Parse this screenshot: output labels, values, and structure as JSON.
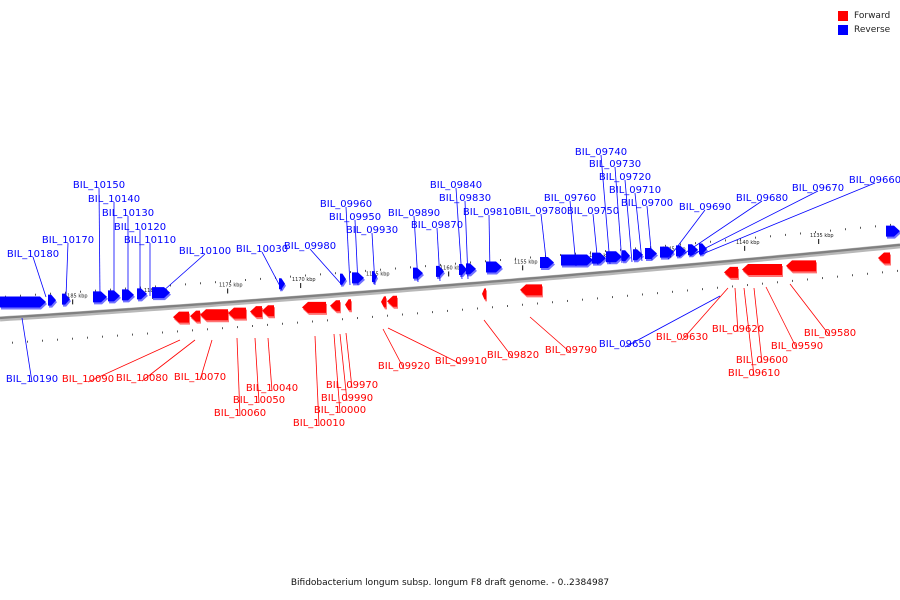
{
  "legend": {
    "forward_label": "Forward",
    "reverse_label": "Reverse",
    "forward_color": "#ff0000",
    "reverse_color": "#0000ff"
  },
  "caption": "Bifidobacterium longum subsp. longum F8 draft genome. - 0..2384987",
  "colors": {
    "backbone": "#808080",
    "forward": "#ff0000",
    "reverse": "#0000ff"
  },
  "ticks": [
    "1185 kbp",
    "1180 kbp",
    "1175 kbp",
    "1170 kbp",
    "1165 kbp",
    "1160 kbp",
    "1155 kbp",
    "1150 kbp",
    "1145 kbp",
    "1140 kbp",
    "1135 kbp"
  ],
  "genes": {
    "reverse": [
      "BIL_10180",
      "BIL_10170",
      "BIL_10150",
      "BIL_10140",
      "BIL_10130",
      "BIL_10120",
      "BIL_10110",
      "BIL_10100",
      "BIL_10030",
      "BIL_09980",
      "BIL_09960",
      "BIL_09950",
      "BIL_09930",
      "BIL_09890",
      "BIL_09870",
      "BIL_09840",
      "BIL_09830",
      "BIL_09810",
      "BIL_09780",
      "BIL_09760",
      "BIL_09750",
      "BIL_09740",
      "BIL_09730",
      "BIL_09720",
      "BIL_09710",
      "BIL_09700",
      "BIL_09690",
      "BIL_09680",
      "BIL_09670",
      "BIL_09660",
      "BIL_10190",
      "BIL_09650"
    ],
    "forward": [
      "BIL_10090",
      "BIL_10080",
      "BIL_10070",
      "BIL_10060",
      "BIL_10050",
      "BIL_10040",
      "BIL_10010",
      "BIL_10000",
      "BIL_09990",
      "BIL_09970",
      "BIL_09920",
      "BIL_09910",
      "BIL_09820",
      "BIL_09790",
      "BIL_09630",
      "BIL_09620",
      "BIL_09610",
      "BIL_09600",
      "BIL_09590",
      "BIL_09580"
    ]
  }
}
